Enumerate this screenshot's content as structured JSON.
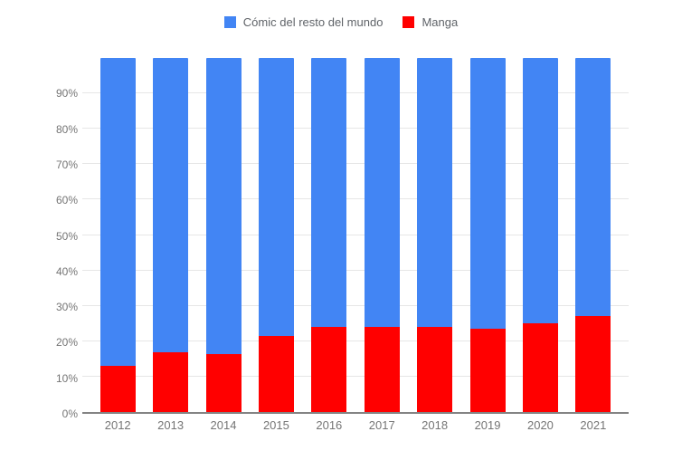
{
  "chart_data": {
    "type": "bar",
    "stacked": true,
    "stack_total": 100,
    "title": "",
    "xlabel": "",
    "ylabel": "",
    "categories": [
      "2012",
      "2013",
      "2014",
      "2015",
      "2016",
      "2017",
      "2018",
      "2019",
      "2020",
      "2021"
    ],
    "series": [
      {
        "name": "Cómic del resto del mundo",
        "color": "#4285f4",
        "values": [
          87,
          83,
          83.5,
          78.5,
          76,
          76,
          76,
          76.5,
          75,
          73
        ]
      },
      {
        "name": "Manga",
        "color": "#ff0000",
        "values": [
          13,
          17,
          16.5,
          21.5,
          24,
          24,
          24,
          23.5,
          25,
          27
        ]
      }
    ],
    "y_ticks": [
      "0%",
      "10%",
      "20%",
      "30%",
      "40%",
      "50%",
      "60%",
      "70%",
      "80%",
      "90%"
    ],
    "ylim": [
      0,
      100
    ],
    "grid": true,
    "legend_position": "top",
    "stack_order_note": "Manga (red) at bottom, Cómic del resto del mundo (blue) on top; each bar totals 100%"
  },
  "style": {
    "background": "#ffffff",
    "grid_color": "#e6e6e6",
    "axis_line_color": "#848484",
    "tick_label_color": "#757575",
    "legend_text_color": "#5f6368"
  }
}
